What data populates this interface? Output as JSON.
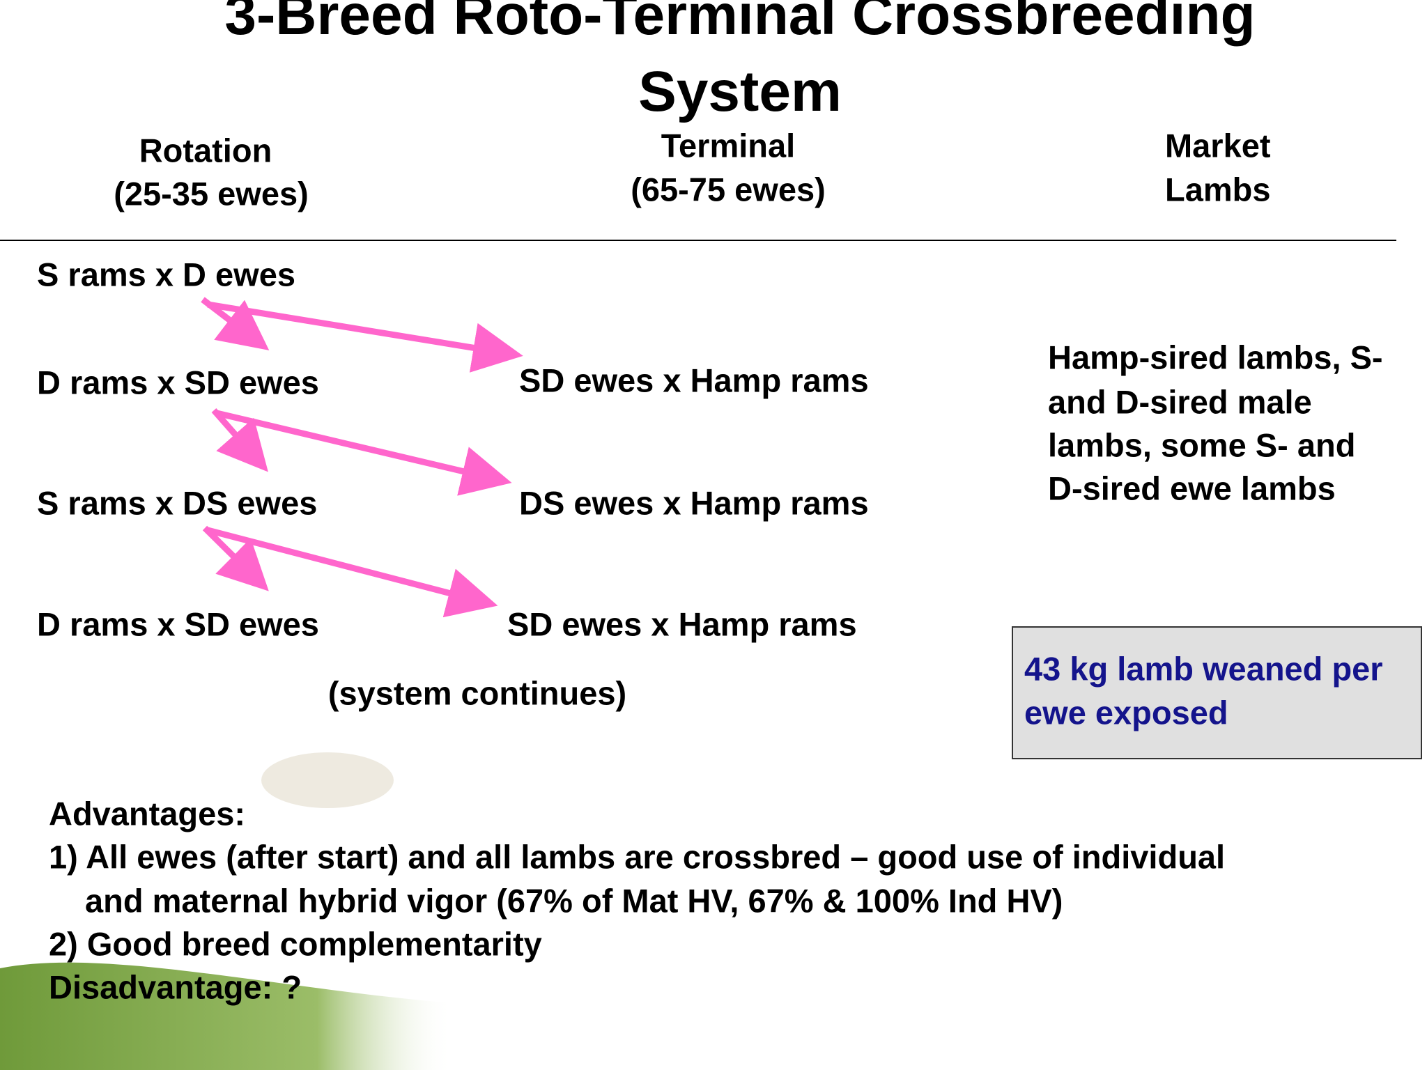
{
  "title": [
    "3-Breed Roto-Terminal Crossbreeding",
    "System"
  ],
  "columns": [
    [
      "Rotation",
      "(25-35 ewes)"
    ],
    [
      "Terminal",
      "(65-75 ewes)"
    ],
    [
      "Market",
      "Lambs"
    ]
  ],
  "rotation": [
    "S rams x D ewes",
    "D rams x  SD ewes",
    "S rams x  DS ewes",
    "D rams x  SD ewes"
  ],
  "terminal": [
    "SD ewes x Hamp rams",
    "DS ewes x Hamp rams",
    "SD ewes x Hamp rams"
  ],
  "continues": "(system continues)",
  "market": [
    "Hamp-sired lambs, S-",
    "and D-sired male",
    "lambs, some S- and",
    "D-sired ewe lambs"
  ],
  "result": [
    "43 kg lamb weaned per",
    "ewe exposed"
  ],
  "notes": [
    "Advantages:",
    "1) All ewes (after start) and all lambs are crossbred – good use of individual",
    "and maternal hybrid vigor (67% of Mat HV, 67% & 100% Ind HV)",
    "2) Good breed complementarity",
    "Disadvantage: ?"
  ]
}
